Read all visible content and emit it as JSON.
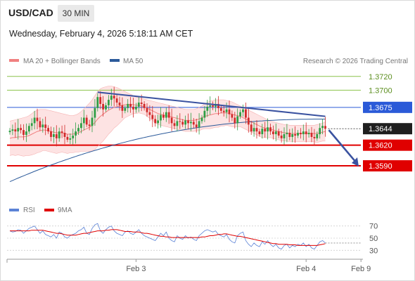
{
  "header": {
    "symbol": "USD/CAD",
    "timeframe": "30 MIN",
    "datetime": "Wednesday, February 4, 2026 5:18:11 AM CET"
  },
  "copyright": "Research © 2026 Trading Central",
  "colors": {
    "candle_up": "#2e9e44",
    "candle_down": "#d12a2a",
    "ma20": "#f08080",
    "bollinger_fill": "#fde0e0",
    "ma50": "#2b5a9a",
    "resistance": "#8bc34a",
    "support": "#e00000",
    "pivot": "#2b5ad8",
    "trendline": "#3a52a0",
    "rsi": "#5b82d6",
    "rsi_ma": "#e00000",
    "current_price_tag": "#222222"
  },
  "chart_data": [
    {
      "type": "candlestick",
      "title": "",
      "legend": [
        {
          "name": "MA 20 + Bollinger Bands",
          "color": "#f08080"
        },
        {
          "name": "MA 50",
          "color": "#2b5a9a"
        }
      ],
      "legend_position": "top-left",
      "ylim": [
        1.354,
        1.373
      ],
      "levels": [
        {
          "value": 1.372,
          "label": "1.3720",
          "role": "resistance",
          "color": "#8bc34a"
        },
        {
          "value": 1.37,
          "label": "1.3700",
          "role": "resistance",
          "color": "#8bc34a"
        },
        {
          "value": 1.3675,
          "label": "1.3675",
          "role": "pivot",
          "color": "#2b5ad8"
        },
        {
          "value": 1.3644,
          "label": "1.3644",
          "role": "current price",
          "color": "#222222"
        },
        {
          "value": 1.362,
          "label": "1.3620",
          "role": "support",
          "color": "#e00000"
        },
        {
          "value": 1.359,
          "label": "1.3590",
          "role": "support",
          "color": "#e00000"
        }
      ],
      "close": [
        1.3641,
        1.3643,
        1.364,
        1.3645,
        1.3642,
        1.3635,
        1.364,
        1.3648,
        1.3652,
        1.366,
        1.3655,
        1.3646,
        1.365,
        1.3645,
        1.364,
        1.3632,
        1.3636,
        1.363,
        1.364,
        1.3638,
        1.3632,
        1.3628,
        1.363,
        1.3634,
        1.364,
        1.3645,
        1.3652,
        1.366,
        1.365,
        1.3648,
        1.366,
        1.3674,
        1.369,
        1.368,
        1.3672,
        1.3678,
        1.3686,
        1.3692,
        1.3688,
        1.3682,
        1.3678,
        1.367,
        1.3674,
        1.368,
        1.3676,
        1.3672,
        1.3676,
        1.3682,
        1.368,
        1.3674,
        1.3668,
        1.3664,
        1.3658,
        1.3652,
        1.3656,
        1.3664,
        1.366,
        1.3668,
        1.366,
        1.3652,
        1.3648,
        1.3655,
        1.3654,
        1.365,
        1.3656,
        1.3652,
        1.3654,
        1.365,
        1.3646,
        1.3655,
        1.366,
        1.367,
        1.3676,
        1.3678,
        1.3676,
        1.368,
        1.3674,
        1.367,
        1.3668,
        1.3672,
        1.3665,
        1.366,
        1.3652,
        1.3662,
        1.3668,
        1.3672,
        1.366,
        1.365,
        1.364,
        1.3645,
        1.364,
        1.3636,
        1.3644,
        1.364,
        1.3646,
        1.364,
        1.3636,
        1.364,
        1.3634,
        1.363,
        1.3636,
        1.3638,
        1.3632,
        1.3636,
        1.3634,
        1.3638,
        1.3636,
        1.364,
        1.3636,
        1.3638,
        1.3632,
        1.363,
        1.3636,
        1.3645,
        1.3648,
        1.3644
      ],
      "ma20": [
        1.363,
        1.3631,
        1.3631,
        1.3632,
        1.3632,
        1.3632,
        1.3633,
        1.3634,
        1.3636,
        1.3638,
        1.364,
        1.3641,
        1.3642,
        1.3642,
        1.3641,
        1.364,
        1.3639,
        1.3638,
        1.3638,
        1.3638,
        1.3637,
        1.3636,
        1.3636,
        1.3636,
        1.3637,
        1.3638,
        1.364,
        1.3642,
        1.3644,
        1.3646,
        1.3649,
        1.3653,
        1.3658,
        1.3662,
        1.3665,
        1.3668,
        1.3671,
        1.3673,
        1.3675,
        1.3676,
        1.3677,
        1.3678,
        1.3679,
        1.3679,
        1.3679,
        1.3679,
        1.3678,
        1.3678,
        1.3677,
        1.3676,
        1.3674,
        1.3672,
        1.367,
        1.3668,
        1.3666,
        1.3665,
        1.3664,
        1.3663,
        1.3662,
        1.3661,
        1.366,
        1.3659,
        1.3658,
        1.3657,
        1.3656,
        1.3656,
        1.3656,
        1.3656,
        1.3657,
        1.3658,
        1.366,
        1.3662,
        1.3663,
        1.3664,
        1.3665,
        1.3666,
        1.3666,
        1.3667,
        1.3667,
        1.3667,
        1.3666,
        1.3665,
        1.3664,
        1.3663,
        1.3662,
        1.366,
        1.3658,
        1.3656,
        1.3654,
        1.3652,
        1.365,
        1.3648,
        1.3646,
        1.3645,
        1.3644,
        1.3643,
        1.3642,
        1.3641,
        1.364,
        1.3639,
        1.3638,
        1.3638,
        1.3637,
        1.3637,
        1.3637,
        1.3637,
        1.3637,
        1.3637,
        1.3637,
        1.3637,
        1.3637,
        1.3637,
        1.3637,
        1.3638,
        1.3639,
        1.364
      ],
      "bb_upper": [
        1.3655,
        1.3656,
        1.3657,
        1.3658,
        1.3659,
        1.366,
        1.3661,
        1.3663,
        1.3666,
        1.3669,
        1.3671,
        1.3672,
        1.3672,
        1.3672,
        1.3671,
        1.367,
        1.3669,
        1.3668,
        1.3667,
        1.3666,
        1.3665,
        1.3664,
        1.3663,
        1.3663,
        1.3664,
        1.3666,
        1.3669,
        1.3673,
        1.3677,
        1.3681,
        1.3686,
        1.3692,
        1.3698,
        1.3702,
        1.3704,
        1.3705,
        1.3706,
        1.3706,
        1.3705,
        1.3704,
        1.3702,
        1.37,
        1.3698,
        1.3696,
        1.3694,
        1.3692,
        1.369,
        1.3689,
        1.3688,
        1.3687,
        1.3686,
        1.3685,
        1.3684,
        1.3683,
        1.3682,
        1.3681,
        1.368,
        1.3679,
        1.3678,
        1.3677,
        1.3676,
        1.3675,
        1.3674,
        1.3673,
        1.3672,
        1.3672,
        1.3672,
        1.3672,
        1.3673,
        1.3675,
        1.3677,
        1.368,
        1.3682,
        1.3684,
        1.3685,
        1.3686,
        1.3686,
        1.3686,
        1.3686,
        1.3685,
        1.3684,
        1.3683,
        1.3681,
        1.3679,
        1.3677,
        1.3675,
        1.3673,
        1.3671,
        1.3669,
        1.3667,
        1.3665,
        1.3663,
        1.3661,
        1.3659,
        1.3657,
        1.3655,
        1.3654,
        1.3653,
        1.3652,
        1.3651,
        1.365,
        1.365,
        1.3649,
        1.3649,
        1.3649,
        1.3649,
        1.3649,
        1.3649,
        1.3649,
        1.3649,
        1.3649,
        1.3649,
        1.365,
        1.3651,
        1.3652,
        1.3654
      ],
      "bb_lower": [
        1.3605,
        1.3606,
        1.3605,
        1.3606,
        1.3605,
        1.3604,
        1.3605,
        1.3605,
        1.3606,
        1.3607,
        1.3609,
        1.361,
        1.3612,
        1.3612,
        1.3611,
        1.361,
        1.3609,
        1.3608,
        1.3609,
        1.361,
        1.3609,
        1.3608,
        1.3609,
        1.3609,
        1.361,
        1.361,
        1.3611,
        1.3611,
        1.3611,
        1.3611,
        1.3612,
        1.3614,
        1.3618,
        1.3622,
        1.3626,
        1.3631,
        1.3636,
        1.364,
        1.3645,
        1.3648,
        1.3652,
        1.3656,
        1.366,
        1.3662,
        1.3664,
        1.3666,
        1.3666,
        1.3667,
        1.3666,
        1.3665,
        1.3662,
        1.3659,
        1.3656,
        1.3653,
        1.365,
        1.3649,
        1.3648,
        1.3647,
        1.3646,
        1.3645,
        1.3644,
        1.3643,
        1.3642,
        1.3641,
        1.364,
        1.364,
        1.364,
        1.364,
        1.3641,
        1.3641,
        1.3643,
        1.3644,
        1.3644,
        1.3644,
        1.3645,
        1.3646,
        1.3646,
        1.3648,
        1.3648,
        1.3649,
        1.3648,
        1.3647,
        1.3647,
        1.3647,
        1.3647,
        1.3645,
        1.3643,
        1.3641,
        1.3639,
        1.3637,
        1.3635,
        1.3633,
        1.3631,
        1.3631,
        1.3631,
        1.3631,
        1.363,
        1.3629,
        1.3628,
        1.3627,
        1.3626,
        1.3626,
        1.3625,
        1.3625,
        1.3625,
        1.3625,
        1.3625,
        1.3625,
        1.3625,
        1.3625,
        1.3625,
        1.3625,
        1.3624,
        1.3625,
        1.3626,
        1.3626
      ],
      "ma50_start": 1.3567,
      "ma50_end": 1.3658,
      "trendline": {
        "from": {
          "index": 32,
          "value": 1.3697
        },
        "to": {
          "index": 115,
          "value": 1.3662
        }
      },
      "projection": {
        "from_value": 1.3642,
        "to_value": 1.3589
      },
      "x_ticks": [
        {
          "index": 46,
          "label": "Feb 3"
        },
        {
          "index": 108,
          "label": "Feb 4"
        },
        {
          "index": 128,
          "label": "Feb 9"
        }
      ]
    },
    {
      "type": "line",
      "title": "",
      "legend": [
        {
          "name": "RSI",
          "color": "#5b82d6"
        },
        {
          "name": "9MA",
          "color": "#e00000"
        }
      ],
      "legend_position": "top-left",
      "ylim": [
        20,
        80
      ],
      "y_ticks": [
        30,
        50,
        70
      ],
      "rsi": [
        62,
        60,
        61,
        64,
        63,
        58,
        62,
        66,
        68,
        70,
        64,
        58,
        62,
        56,
        54,
        52,
        56,
        50,
        60,
        58,
        52,
        50,
        54,
        56,
        58,
        62,
        64,
        68,
        58,
        56,
        66,
        72,
        74,
        62,
        58,
        64,
        68,
        70,
        62,
        58,
        56,
        54,
        60,
        62,
        58,
        56,
        60,
        64,
        58,
        54,
        52,
        50,
        48,
        46,
        52,
        58,
        54,
        60,
        50,
        46,
        44,
        54,
        50,
        48,
        54,
        50,
        52,
        48,
        46,
        54,
        58,
        62,
        64,
        62,
        60,
        62,
        56,
        54,
        52,
        56,
        48,
        44,
        42,
        54,
        58,
        60,
        46,
        40,
        36,
        42,
        38,
        36,
        44,
        40,
        46,
        40,
        36,
        40,
        34,
        32,
        38,
        40,
        34,
        38,
        36,
        40,
        38,
        42,
        36,
        40,
        34,
        32,
        38,
        44,
        46,
        42
      ],
      "rsi_ma": [
        62,
        62,
        62,
        62,
        62,
        62,
        62,
        62,
        63,
        63,
        63,
        63,
        63,
        62,
        61,
        60,
        59,
        58,
        58,
        57,
        56,
        55,
        55,
        55,
        55,
        56,
        57,
        58,
        58,
        59,
        60,
        61,
        62,
        62,
        62,
        63,
        63,
        64,
        64,
        64,
        63,
        62,
        61,
        61,
        61,
        60,
        60,
        60,
        59,
        58,
        58,
        57,
        56,
        55,
        54,
        53,
        53,
        52,
        52,
        51,
        51,
        51,
        51,
        51,
        51,
        51,
        51,
        51,
        51,
        51,
        52,
        52,
        53,
        54,
        54,
        55,
        56,
        56,
        57,
        57,
        56,
        55,
        54,
        53,
        53,
        52,
        51,
        50,
        49,
        48,
        47,
        46,
        45,
        44,
        43,
        42,
        41,
        41,
        40,
        40,
        40,
        40,
        39,
        39,
        39,
        38,
        38,
        38,
        38,
        38,
        38,
        38,
        38,
        39,
        40,
        41
      ]
    }
  ]
}
